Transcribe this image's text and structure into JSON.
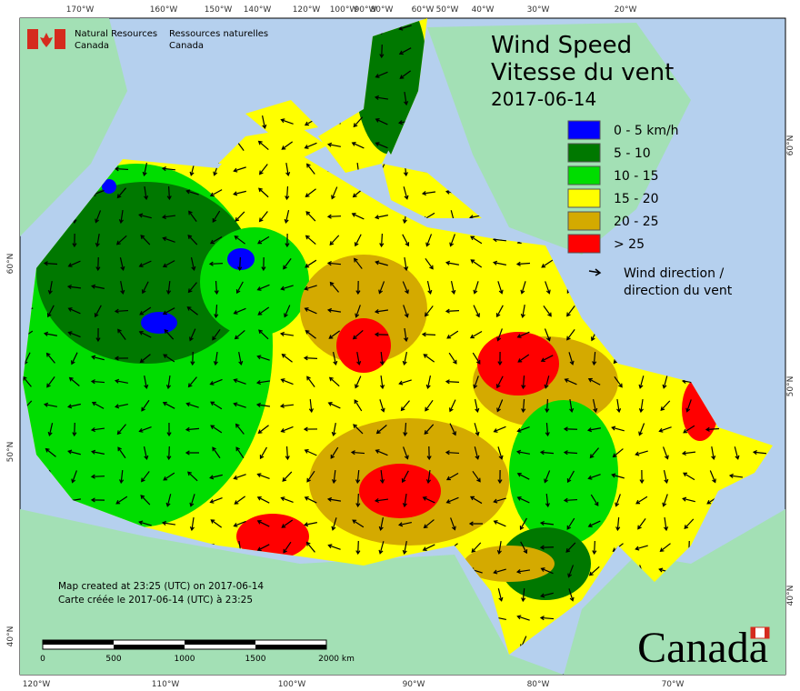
{
  "header": {
    "agency_en": "Natural Resources",
    "agency_en_2": "Canada",
    "agency_fr": "Ressources naturelles",
    "agency_fr_2": "Canada",
    "title_en": "Wind Speed",
    "title_fr": "Vitesse du vent",
    "date": "2017-06-14"
  },
  "legend": {
    "items": [
      {
        "label": "0 - 5 km/h",
        "color": "#0000ff"
      },
      {
        "label": "5 - 10",
        "color": "#007800"
      },
      {
        "label": "10 - 15",
        "color": "#00dd00"
      },
      {
        "label": "15 - 20",
        "color": "#ffff00"
      },
      {
        "label": "20 - 25",
        "color": "#d4aa00"
      },
      {
        "label": "> 25",
        "color": "#ff0000"
      }
    ],
    "direction_en": "Wind direction /",
    "direction_fr": "direction du vent"
  },
  "footer": {
    "created_en": "Map created at 23:25 (UTC) on 2017-06-14",
    "created_fr": "Carte créée le 2017-06-14 (UTC) à 23:25",
    "scale": [
      "0",
      "500",
      "1000",
      "1500",
      "2000 km"
    ],
    "wordmark": "Canada"
  },
  "graticule": {
    "top": [
      "170°W",
      "160°W",
      "150°W",
      "140°W",
      "120°W",
      "100°W",
      "90°W",
      "80°W",
      "60°W",
      "50°W",
      "40°W",
      "30°W",
      "20°W"
    ],
    "bottom": [
      "120°W",
      "110°W",
      "100°W",
      "90°W",
      "80°W",
      "70°W"
    ],
    "left": [
      "60°N",
      "50°N",
      "40°N"
    ],
    "right": [
      "60°N",
      "50°N",
      "40°N"
    ]
  }
}
